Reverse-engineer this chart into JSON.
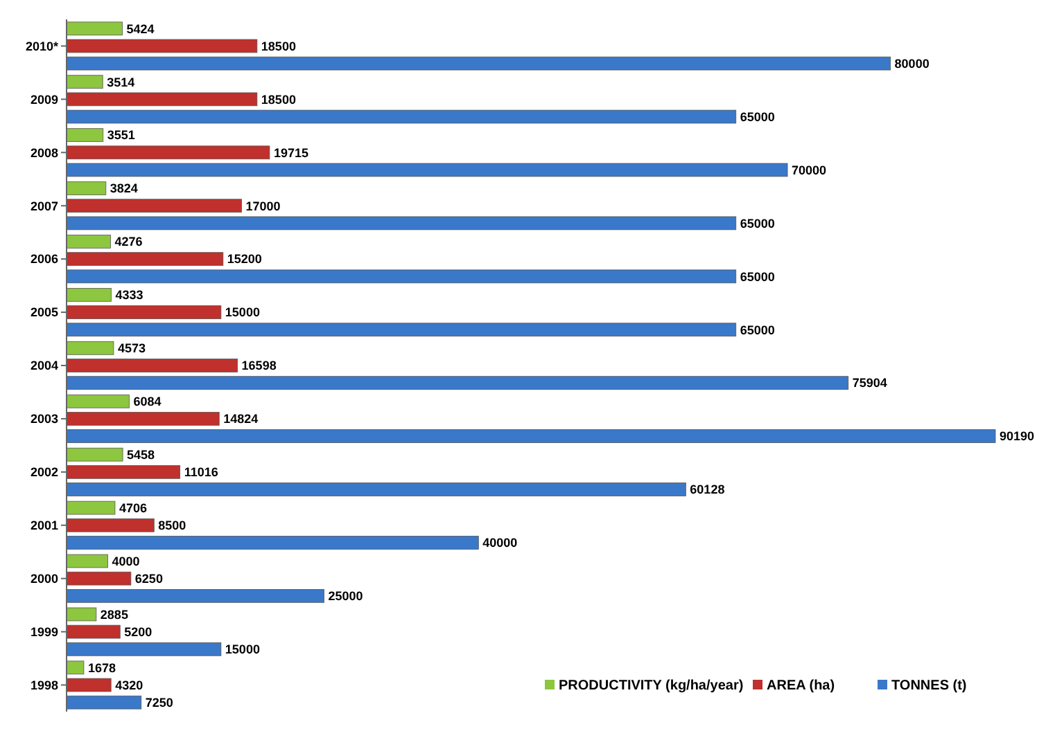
{
  "chart_data": {
    "type": "bar",
    "orientation": "horizontal",
    "data_labels": true,
    "legend": "bottom right",
    "categories": [
      "2010*",
      "2009",
      "2008",
      "2007",
      "2006",
      "2005",
      "2004",
      "2003",
      "2002",
      "2001",
      "2000",
      "1999",
      "1998"
    ],
    "series": [
      {
        "name": "PRODUCTIVITY (kg/ha/year)",
        "color": "#8dc63f",
        "values": [
          5424,
          3514,
          3551,
          3824,
          4276,
          4333,
          4573,
          6084,
          5458,
          4706,
          4000,
          2885,
          1678
        ]
      },
      {
        "name": "AREA (ha)",
        "color": "#c0302c",
        "values": [
          18500,
          18500,
          19715,
          17000,
          15200,
          15000,
          16598,
          14824,
          11016,
          8500,
          6250,
          5200,
          4320
        ]
      },
      {
        "name": "TONNES (t)",
        "color": "#3a78c9",
        "values": [
          80000,
          65000,
          70000,
          65000,
          65000,
          65000,
          75904,
          90190,
          60128,
          40000,
          25000,
          15000,
          7250
        ]
      }
    ]
  }
}
